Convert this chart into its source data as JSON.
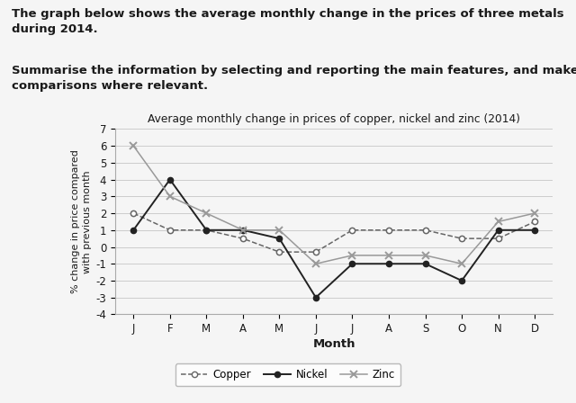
{
  "title": "Average monthly change in prices of copper, nickel and zinc (2014)",
  "xlabel": "Month",
  "ylabel": "% change in price compared\nwith previous month",
  "months": [
    "J",
    "F",
    "M",
    "A",
    "M",
    "J",
    "J",
    "A",
    "S",
    "O",
    "N",
    "D"
  ],
  "copper": [
    2.0,
    1.0,
    1.0,
    0.5,
    -0.3,
    -0.3,
    1.0,
    1.0,
    1.0,
    0.5,
    0.5,
    1.5
  ],
  "nickel": [
    1.0,
    4.0,
    1.0,
    1.0,
    0.5,
    -3.0,
    -1.0,
    -1.0,
    -1.0,
    -2.0,
    1.0,
    1.0
  ],
  "zinc": [
    6.0,
    3.0,
    2.0,
    1.0,
    1.0,
    -1.0,
    -0.5,
    -0.5,
    -0.5,
    -1.0,
    1.5,
    2.0
  ],
  "ylim": [
    -4,
    7
  ],
  "yticks": [
    -4,
    -3,
    -2,
    -1,
    0,
    1,
    2,
    3,
    4,
    5,
    6,
    7
  ],
  "bg_color": "#f5f5f5",
  "text_color": "#1a1a1a",
  "header1": "The graph below shows the average monthly change in the prices of three metals\nduring 2014.",
  "header2": "Summarise the information by selecting and reporting the main features, and make\ncomparisons where relevant.",
  "copper_color": "#666666",
  "nickel_color": "#222222",
  "zinc_color": "#999999",
  "grid_color": "#cccccc"
}
